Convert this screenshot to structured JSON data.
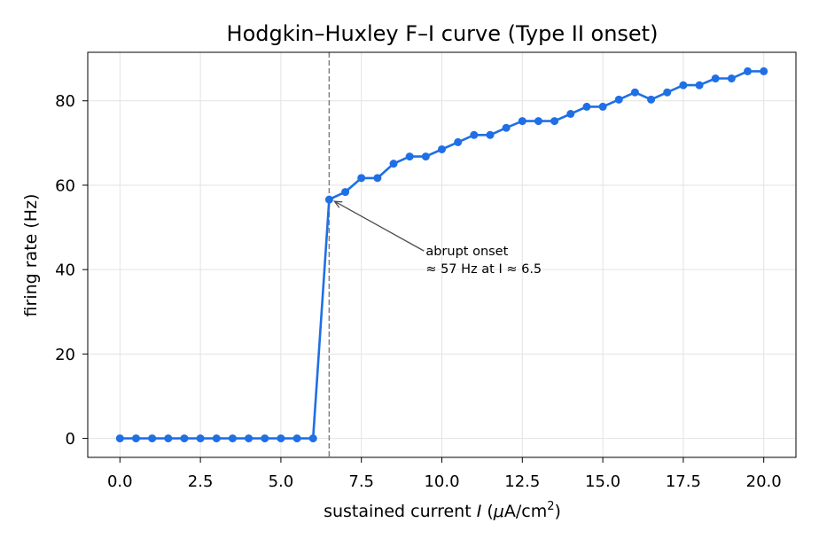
{
  "chart_data": {
    "type": "line",
    "title": "Hodgkin–Huxley F–I curve (Type II onset)",
    "xlabel_prefix": "sustained current  ",
    "xlabel_var": "I",
    "xlabel_unit_open": "  (",
    "xlabel_mu": "μ",
    "xlabel_unit_mid": "A/cm",
    "xlabel_unit_sup": "2",
    "xlabel_unit_close": ")",
    "ylabel": "firing rate (Hz)",
    "xlim": [
      -1.0,
      21.0
    ],
    "ylim": [
      -4.5,
      91.5
    ],
    "xticks": [
      0.0,
      2.5,
      5.0,
      7.5,
      10.0,
      12.5,
      15.0,
      17.5,
      20.0
    ],
    "xtick_labels": [
      "0.0",
      "2.5",
      "5.0",
      "7.5",
      "10.0",
      "12.5",
      "15.0",
      "17.5",
      "20.0"
    ],
    "yticks": [
      0,
      20,
      40,
      60,
      80
    ],
    "ytick_labels": [
      "0",
      "20",
      "40",
      "60",
      "80"
    ],
    "grid": true,
    "threshold_line_x": 6.5,
    "series": [
      {
        "color": "#1f6fe5",
        "x": [
          0.0,
          0.5,
          1.0,
          1.5,
          2.0,
          2.5,
          3.0,
          3.5,
          4.0,
          4.5,
          5.0,
          5.5,
          6.0,
          6.5,
          7.0,
          7.5,
          8.0,
          8.5,
          9.0,
          9.5,
          10.0,
          10.5,
          11.0,
          11.5,
          12.0,
          12.5,
          13.0,
          13.5,
          14.0,
          14.5,
          15.0,
          15.5,
          16.0,
          16.5,
          17.0,
          17.5,
          18.0,
          18.5,
          19.0,
          19.5,
          20.0
        ],
        "y": [
          0,
          0,
          0,
          0,
          0,
          0,
          0,
          0,
          0,
          0,
          0,
          0,
          0,
          56.6,
          58.4,
          61.7,
          61.7,
          65.1,
          66.8,
          66.8,
          68.5,
          70.2,
          71.9,
          71.9,
          73.6,
          75.2,
          75.2,
          75.2,
          76.9,
          78.6,
          78.6,
          80.3,
          82.0,
          80.3,
          82.0,
          83.7,
          83.7,
          85.3,
          85.3,
          87.0,
          87.0
        ]
      }
    ],
    "annotation": {
      "line1": "abrupt onset",
      "line2": "≈ 57 Hz at I ≈ 6.5",
      "point": [
        6.5,
        56.6
      ],
      "text_at": [
        9.5,
        44.0
      ]
    }
  }
}
